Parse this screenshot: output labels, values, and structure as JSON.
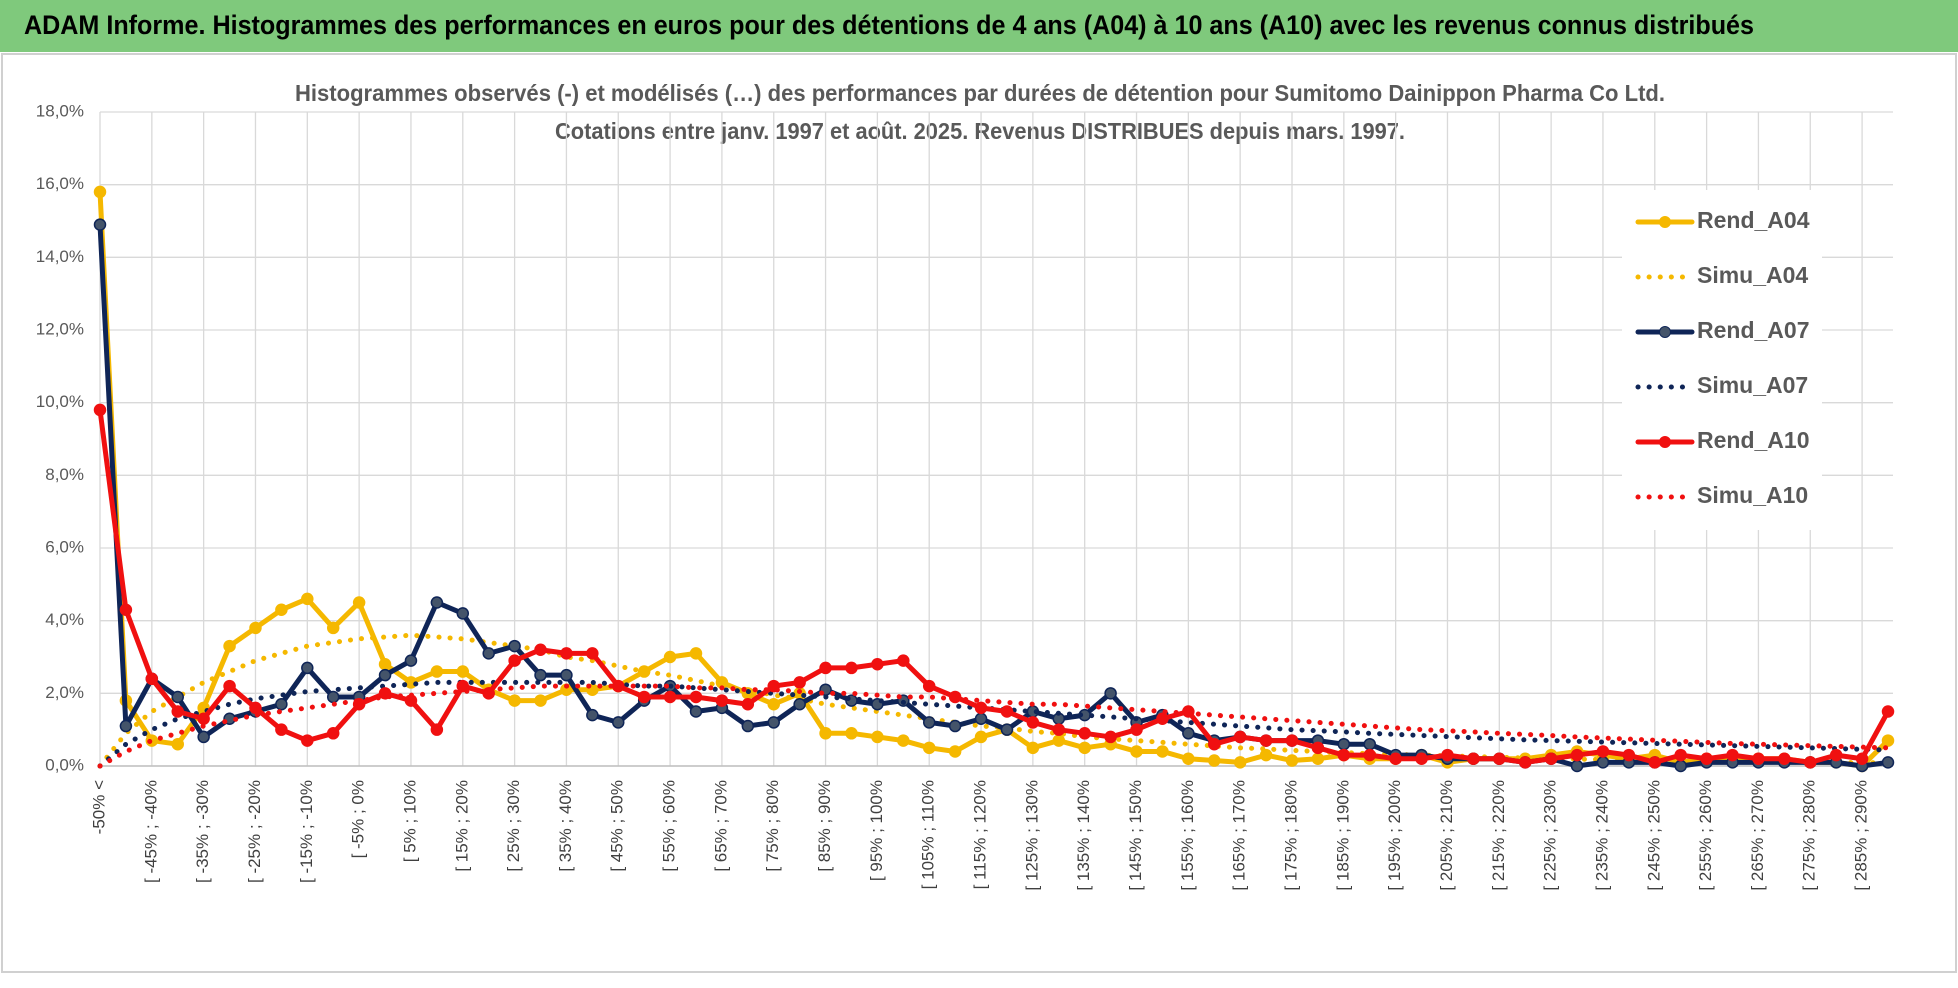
{
  "chart_data": {
    "type": "line",
    "report_title": "ADAM Informe. Histogrammes des performances en euros pour des détentions de 4 ans (A04) à 10 ans (A10) avec les revenus connus distribués",
    "title": "Histogrammes observés (-) et modélisés (…) des performances par durées de détention pour Sumitomo Dainippon Pharma Co Ltd.",
    "subtitle": "Cotations entre janv. 1997 et août. 2025. Revenus DISTRIBUES depuis mars. 1997.",
    "categories": [
      "-50% <",
      null,
      "[ -45% ; -40%",
      null,
      "[ -35% ; -30%",
      null,
      "[ -25% ; -20%",
      null,
      "[ -15% ; -10%",
      null,
      "[ -5% ; 0%",
      null,
      "[ 5% ; 10%",
      null,
      "[ 15% ; 20%",
      null,
      "[ 25% ; 30%",
      null,
      "[ 35% ; 40%",
      null,
      "[ 45% ; 50%",
      null,
      "[ 55% ; 60%",
      null,
      "[ 65% ; 70%",
      null,
      "[ 75% ; 80%",
      null,
      "[ 85% ; 90%",
      null,
      "[ 95% ; 100%",
      null,
      "[ 105% ; 110%",
      null,
      "[ 115% ; 120%",
      null,
      "[ 125% ; 130%",
      null,
      "[ 135% ; 140%",
      null,
      "[ 145% ; 150%",
      null,
      "[ 155% ; 160%",
      null,
      "[ 165% ; 170%",
      null,
      "[ 175% ; 180%",
      null,
      "[ 185% ; 190%",
      null,
      "[ 195% ; 200%",
      null,
      "[ 205% ; 210%",
      null,
      "[ 215% ; 220%",
      null,
      "[ 225% ; 230%",
      null,
      "[ 235% ; 240%",
      null,
      "[ 245% ; 250%",
      null,
      "[ 255% ; 260%",
      null,
      "[ 265% ; 270%",
      null,
      "[ 275% ; 280%",
      null,
      "[ 285% ; 290%",
      null
    ],
    "series": [
      {
        "name": "Rend_A04",
        "color": "#f5b800",
        "style": "solid",
        "marker": true,
        "values": [
          15.8,
          1.8,
          0.7,
          0.6,
          1.6,
          3.3,
          3.8,
          4.3,
          4.6,
          3.8,
          4.5,
          2.8,
          2.3,
          2.6,
          2.6,
          2.1,
          1.8,
          1.8,
          2.1,
          2.1,
          2.2,
          2.6,
          3.0,
          3.1,
          2.3,
          2.0,
          1.7,
          2.0,
          0.9,
          0.9,
          0.8,
          0.7,
          0.5,
          0.4,
          0.8,
          1.0,
          0.5,
          0.7,
          0.5,
          0.6,
          0.4,
          0.4,
          0.2,
          0.15,
          0.1,
          0.3,
          0.15,
          0.2,
          0.3,
          0.2,
          0.2,
          0.3,
          0.1,
          0.2,
          0.2,
          0.2,
          0.3,
          0.4,
          0.3,
          0.2,
          0.3,
          0.1,
          0.2,
          0.2,
          0.2,
          0.2,
          0.1,
          0.1,
          0.0,
          0.7
        ]
      },
      {
        "name": "Simu_A04",
        "color": "#f5b800",
        "style": "dotted",
        "marker": false,
        "values": [
          0.0,
          0.9,
          1.5,
          1.9,
          2.3,
          2.6,
          2.9,
          3.1,
          3.3,
          3.4,
          3.5,
          3.55,
          3.6,
          3.55,
          3.5,
          3.4,
          3.3,
          3.2,
          3.0,
          2.9,
          2.75,
          2.6,
          2.5,
          2.35,
          2.2,
          2.1,
          1.95,
          1.85,
          1.7,
          1.6,
          1.5,
          1.4,
          1.3,
          1.2,
          1.1,
          1.05,
          0.95,
          0.9,
          0.8,
          0.75,
          0.7,
          0.65,
          0.6,
          0.55,
          0.5,
          0.47,
          0.43,
          0.4,
          0.37,
          0.34,
          0.32,
          0.3,
          0.28,
          0.26,
          0.24,
          0.22,
          0.2,
          0.19,
          0.18,
          0.17,
          0.16,
          0.15,
          0.14,
          0.13,
          0.12,
          0.11,
          0.1,
          0.1,
          0.09,
          0.09
        ]
      },
      {
        "name": "Rend_A07",
        "color": "#0f2557",
        "style": "solid",
        "marker": true,
        "values": [
          14.9,
          1.1,
          2.4,
          1.9,
          0.8,
          1.3,
          1.5,
          1.7,
          2.7,
          1.9,
          1.9,
          2.5,
          2.9,
          4.5,
          4.2,
          3.1,
          3.3,
          2.5,
          2.5,
          1.4,
          1.2,
          1.8,
          2.2,
          1.5,
          1.6,
          1.1,
          1.2,
          1.7,
          2.1,
          1.8,
          1.7,
          1.8,
          1.2,
          1.1,
          1.3,
          1.0,
          1.5,
          1.3,
          1.4,
          2.0,
          1.2,
          1.4,
          0.9,
          0.7,
          0.8,
          0.7,
          0.7,
          0.7,
          0.6,
          0.6,
          0.3,
          0.3,
          0.2,
          0.2,
          0.2,
          0.1,
          0.2,
          0.0,
          0.1,
          0.1,
          0.1,
          0.0,
          0.1,
          0.1,
          0.1,
          0.1,
          0.1,
          0.1,
          0.0,
          0.1
        ]
      },
      {
        "name": "Simu_A07",
        "color": "#0f2557",
        "style": "dotted",
        "marker": false,
        "values": [
          0.0,
          0.6,
          1.0,
          1.3,
          1.5,
          1.7,
          1.85,
          1.95,
          2.05,
          2.1,
          2.15,
          2.2,
          2.25,
          2.3,
          2.3,
          2.3,
          2.3,
          2.3,
          2.3,
          2.3,
          2.25,
          2.2,
          2.2,
          2.15,
          2.1,
          2.05,
          2.0,
          1.95,
          1.9,
          1.85,
          1.8,
          1.75,
          1.7,
          1.65,
          1.6,
          1.55,
          1.5,
          1.45,
          1.4,
          1.35,
          1.3,
          1.25,
          1.2,
          1.15,
          1.1,
          1.05,
          1.0,
          0.97,
          0.94,
          0.9,
          0.87,
          0.84,
          0.81,
          0.78,
          0.75,
          0.72,
          0.7,
          0.68,
          0.66,
          0.64,
          0.62,
          0.6,
          0.58,
          0.56,
          0.54,
          0.52,
          0.5,
          0.48,
          0.46,
          0.44
        ]
      },
      {
        "name": "Rend_A10",
        "color": "#f01010",
        "style": "solid",
        "marker": true,
        "values": [
          9.8,
          4.3,
          2.4,
          1.5,
          1.3,
          2.2,
          1.6,
          1.0,
          0.7,
          0.9,
          1.7,
          2.0,
          1.8,
          1.0,
          2.2,
          2.0,
          2.9,
          3.2,
          3.1,
          3.1,
          2.2,
          1.9,
          1.9,
          1.9,
          1.8,
          1.7,
          2.2,
          2.3,
          2.7,
          2.7,
          2.8,
          2.9,
          2.2,
          1.9,
          1.6,
          1.5,
          1.2,
          1.0,
          0.9,
          0.8,
          1.0,
          1.3,
          1.5,
          0.6,
          0.8,
          0.7,
          0.7,
          0.5,
          0.3,
          0.3,
          0.2,
          0.2,
          0.3,
          0.2,
          0.2,
          0.1,
          0.2,
          0.3,
          0.4,
          0.3,
          0.1,
          0.3,
          0.2,
          0.3,
          0.2,
          0.2,
          0.1,
          0.3,
          0.2,
          1.5
        ]
      },
      {
        "name": "Simu_A10",
        "color": "#f01010",
        "style": "dotted",
        "marker": false,
        "values": [
          0.0,
          0.4,
          0.7,
          0.9,
          1.1,
          1.25,
          1.4,
          1.5,
          1.6,
          1.7,
          1.8,
          1.9,
          1.95,
          2.0,
          2.05,
          2.1,
          2.15,
          2.2,
          2.2,
          2.2,
          2.2,
          2.2,
          2.2,
          2.15,
          2.15,
          2.1,
          2.1,
          2.05,
          2.0,
          2.0,
          1.95,
          1.9,
          1.9,
          1.85,
          1.8,
          1.75,
          1.7,
          1.7,
          1.65,
          1.6,
          1.55,
          1.5,
          1.45,
          1.4,
          1.35,
          1.3,
          1.25,
          1.2,
          1.15,
          1.1,
          1.05,
          1.0,
          0.97,
          0.94,
          0.9,
          0.87,
          0.84,
          0.8,
          0.77,
          0.74,
          0.71,
          0.68,
          0.65,
          0.62,
          0.6,
          0.58,
          0.56,
          0.54,
          0.52,
          0.5
        ]
      }
    ],
    "ylim": [
      0,
      18
    ],
    "yticks": [
      {
        "value": 0,
        "label": "0,0%"
      },
      {
        "value": 2,
        "label": "2,0%"
      },
      {
        "value": 4,
        "label": "4,0%"
      },
      {
        "value": 6,
        "label": "6,0%"
      },
      {
        "value": 8,
        "label": "8,0%"
      },
      {
        "value": 10,
        "label": "10,0%"
      },
      {
        "value": 12,
        "label": "12,0%"
      },
      {
        "value": 14,
        "label": "14,0%"
      },
      {
        "value": 16,
        "label": "16,0%"
      },
      {
        "value": 18,
        "label": "18,0%"
      }
    ],
    "grid": true,
    "legend": "right"
  }
}
